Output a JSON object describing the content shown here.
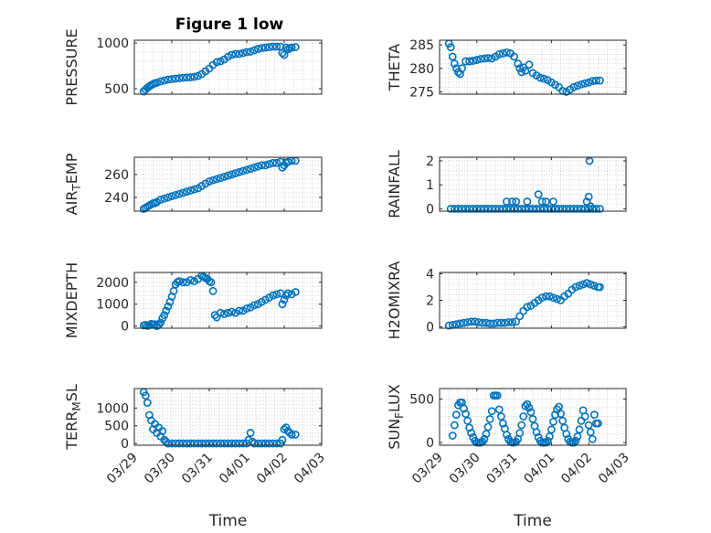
{
  "figure": {
    "title": "Figure 1 low",
    "marker_color": "#0072BD",
    "x_axis_label": "Time",
    "x_ticks": [
      "03/29",
      "03/30",
      "03/31",
      "04/01",
      "04/02",
      "04/03"
    ],
    "x_range": [
      0,
      5
    ]
  },
  "chart_data": [
    {
      "type": "scatter",
      "ylabel": "PRESSURE",
      "ylabel_parts": [
        {
          "t": "PRESSURE"
        }
      ],
      "ylim": [
        440,
        1030
      ],
      "yticks": [
        500,
        1000
      ],
      "xlim": [
        0,
        5
      ],
      "grid": true,
      "x": [
        0.25,
        0.3,
        0.35,
        0.4,
        0.45,
        0.5,
        0.55,
        0.6,
        0.7,
        0.8,
        0.9,
        1.0,
        1.1,
        1.2,
        1.3,
        1.4,
        1.5,
        1.6,
        1.7,
        1.8,
        1.9,
        2.0,
        2.1,
        2.2,
        2.3,
        2.4,
        2.5,
        2.6,
        2.7,
        2.8,
        2.9,
        3.0,
        3.1,
        3.2,
        3.3,
        3.4,
        3.5,
        3.6,
        3.7,
        3.8,
        3.9,
        3.95,
        4.0,
        4.05,
        4.1,
        4.15,
        4.2,
        4.3
      ],
      "y": [
        470,
        490,
        510,
        525,
        540,
        550,
        560,
        565,
        580,
        590,
        600,
        605,
        610,
        615,
        620,
        622,
        625,
        630,
        640,
        660,
        690,
        720,
        760,
        790,
        800,
        820,
        850,
        870,
        880,
        880,
        890,
        900,
        905,
        920,
        935,
        945,
        950,
        955,
        960,
        960,
        960,
        890,
        870,
        950,
        930,
        945,
        950,
        955
      ]
    },
    {
      "type": "scatter",
      "ylabel": "THETA",
      "ylabel_parts": [
        {
          "t": "THETA"
        }
      ],
      "ylim": [
        274.5,
        286
      ],
      "yticks": [
        275,
        280,
        285
      ],
      "xlim": [
        0,
        5
      ],
      "grid": true,
      "x": [
        0.25,
        0.3,
        0.35,
        0.4,
        0.45,
        0.5,
        0.55,
        0.6,
        0.7,
        0.8,
        0.9,
        1.0,
        1.1,
        1.2,
        1.3,
        1.4,
        1.5,
        1.6,
        1.7,
        1.8,
        1.9,
        2.0,
        2.1,
        2.15,
        2.2,
        2.25,
        2.3,
        2.4,
        2.5,
        2.6,
        2.7,
        2.8,
        2.9,
        3.0,
        3.1,
        3.2,
        3.3,
        3.4,
        3.5,
        3.6,
        3.7,
        3.8,
        3.9,
        4.0,
        4.1,
        4.2,
        4.3
      ],
      "y": [
        285.3,
        284.5,
        282.5,
        281.0,
        280.0,
        279.2,
        278.8,
        280.0,
        281.5,
        281.5,
        281.6,
        281.8,
        282.0,
        282.1,
        282.2,
        282.1,
        282.5,
        283.0,
        283.2,
        283.4,
        283.2,
        282.5,
        281.0,
        280.0,
        279.2,
        280.2,
        279.5,
        280.8,
        279.0,
        278.5,
        278.0,
        277.8,
        277.5,
        277.0,
        276.5,
        276.0,
        275.2,
        275.0,
        275.5,
        276.0,
        276.3,
        276.6,
        276.8,
        277.0,
        277.3,
        277.4,
        277.4
      ]
    },
    {
      "type": "scatter",
      "ylabel": "AIR_TEMP",
      "ylabel_parts": [
        {
          "t": "AIR"
        },
        {
          "t": "T",
          "sub": true
        },
        {
          "t": "EMP"
        }
      ],
      "ylim": [
        228,
        275
      ],
      "yticks": [
        240,
        260
      ],
      "xlim": [
        0,
        5
      ],
      "grid": true,
      "x": [
        0.25,
        0.3,
        0.35,
        0.4,
        0.45,
        0.5,
        0.55,
        0.6,
        0.7,
        0.8,
        0.9,
        1.0,
        1.1,
        1.2,
        1.3,
        1.4,
        1.5,
        1.6,
        1.7,
        1.8,
        1.9,
        2.0,
        2.1,
        2.2,
        2.3,
        2.4,
        2.5,
        2.6,
        2.7,
        2.8,
        2.9,
        3.0,
        3.1,
        3.2,
        3.3,
        3.4,
        3.5,
        3.6,
        3.7,
        3.8,
        3.9,
        3.95,
        4.0,
        4.05,
        4.1,
        4.2,
        4.3
      ],
      "y": [
        230,
        231,
        232,
        233,
        234,
        235,
        235,
        236,
        238,
        239,
        240,
        241,
        242,
        243,
        244,
        245,
        246,
        247,
        248,
        250,
        252,
        254,
        255,
        256,
        257,
        258,
        259,
        260,
        261,
        262,
        263,
        264,
        265,
        266,
        267,
        268,
        268,
        269,
        270,
        270,
        271,
        266,
        268,
        270,
        271,
        272,
        272
      ]
    },
    {
      "type": "scatter",
      "ylabel": "RAINFALL",
      "ylabel_parts": [
        {
          "t": "RAINFALL"
        }
      ],
      "ylim": [
        -0.1,
        2.15
      ],
      "yticks": [
        0,
        1,
        2
      ],
      "xlim": [
        0,
        5
      ],
      "grid": true,
      "x": [
        0.3,
        0.4,
        0.5,
        0.6,
        0.7,
        0.8,
        0.9,
        1.0,
        1.1,
        1.2,
        1.3,
        1.4,
        1.5,
        1.6,
        1.7,
        1.8,
        1.9,
        2.0,
        2.1,
        2.2,
        2.3,
        2.4,
        2.5,
        2.6,
        2.7,
        2.8,
        2.9,
        3.0,
        3.1,
        3.2,
        3.3,
        3.4,
        3.5,
        3.6,
        3.7,
        3.8,
        3.9,
        4.0,
        4.1,
        4.2,
        4.3,
        1.8,
        1.95,
        2.05,
        2.35,
        2.65,
        2.75,
        2.85,
        3.05,
        3.95,
        4.0,
        4.05,
        4.02
      ],
      "y": [
        0,
        0,
        0,
        0,
        0,
        0,
        0,
        0,
        0,
        0,
        0,
        0,
        0,
        0,
        0,
        0,
        0,
        0,
        0,
        0,
        0,
        0,
        0,
        0,
        0,
        0,
        0,
        0,
        0,
        0,
        0,
        0,
        0,
        0,
        0,
        0,
        0,
        0,
        0,
        0,
        0,
        0.3,
        0.3,
        0.3,
        0.3,
        0.6,
        0.3,
        0.3,
        0.3,
        0.3,
        0.5,
        0.1,
        2.0
      ]
    },
    {
      "type": "scatter",
      "ylabel": "MIXDEPTH",
      "ylabel_parts": [
        {
          "t": "MIXDEPTH"
        }
      ],
      "ylim": [
        -100,
        2450
      ],
      "yticks": [
        0,
        1000,
        2000
      ],
      "xlim": [
        0,
        5
      ],
      "grid": true,
      "x": [
        0.25,
        0.3,
        0.35,
        0.4,
        0.45,
        0.5,
        0.55,
        0.6,
        0.65,
        0.7,
        0.75,
        0.8,
        0.85,
        0.9,
        0.95,
        1.0,
        1.05,
        1.1,
        1.15,
        1.2,
        1.3,
        1.4,
        1.5,
        1.6,
        1.7,
        1.8,
        1.85,
        1.9,
        1.95,
        2.0,
        2.05,
        2.1,
        2.15,
        2.2,
        2.3,
        2.4,
        2.5,
        2.6,
        2.7,
        2.8,
        2.9,
        3.0,
        3.1,
        3.2,
        3.3,
        3.4,
        3.5,
        3.6,
        3.7,
        3.8,
        3.9,
        3.95,
        4.0,
        4.05,
        4.1,
        4.2,
        4.3
      ],
      "y": [
        30,
        50,
        10,
        40,
        100,
        60,
        80,
        0,
        50,
        150,
        350,
        500,
        700,
        900,
        1100,
        1350,
        1600,
        1900,
        2000,
        2050,
        2000,
        2000,
        2100,
        2050,
        2150,
        2300,
        2250,
        2200,
        2150,
        2050,
        2000,
        1600,
        500,
        400,
        600,
        550,
        600,
        650,
        600,
        700,
        700,
        800,
        850,
        950,
        1000,
        1100,
        1200,
        1300,
        1400,
        1450,
        1500,
        1000,
        1200,
        1400,
        1500,
        1450,
        1550
      ]
    },
    {
      "type": "scatter",
      "ylabel": "H2OMIXRA",
      "ylabel_parts": [
        {
          "t": "H2OMIXRA"
        }
      ],
      "ylim": [
        -0.1,
        4.1
      ],
      "yticks": [
        0,
        2,
        4
      ],
      "xlim": [
        0,
        5
      ],
      "grid": true,
      "x": [
        0.25,
        0.35,
        0.45,
        0.55,
        0.65,
        0.75,
        0.85,
        0.95,
        1.05,
        1.15,
        1.25,
        1.35,
        1.45,
        1.55,
        1.65,
        1.75,
        1.85,
        1.95,
        2.05,
        2.15,
        2.25,
        2.35,
        2.45,
        2.55,
        2.65,
        2.75,
        2.85,
        2.95,
        3.05,
        3.15,
        3.25,
        3.35,
        3.45,
        3.55,
        3.65,
        3.75,
        3.85,
        3.95,
        4.05,
        4.15,
        4.25,
        4.3
      ],
      "y": [
        0.1,
        0.15,
        0.2,
        0.25,
        0.3,
        0.35,
        0.4,
        0.4,
        0.35,
        0.3,
        0.3,
        0.25,
        0.25,
        0.3,
        0.3,
        0.3,
        0.35,
        0.35,
        0.4,
        0.8,
        1.2,
        1.5,
        1.6,
        1.8,
        2.0,
        2.2,
        2.3,
        2.3,
        2.2,
        2.1,
        2.0,
        2.3,
        2.5,
        2.8,
        3.0,
        3.1,
        3.2,
        3.3,
        3.2,
        3.1,
        3.0,
        3.0
      ]
    },
    {
      "type": "scatter",
      "ylabel": "TERR_MSL",
      "ylabel_parts": [
        {
          "t": "TERR"
        },
        {
          "t": "M",
          "sub": true
        },
        {
          "t": "SL"
        }
      ],
      "ylim": [
        -50,
        1550
      ],
      "yticks": [
        0,
        500,
        1000
      ],
      "xlim": [
        0,
        5
      ],
      "grid": true,
      "x": [
        0.25,
        0.3,
        0.35,
        0.4,
        0.45,
        0.5,
        0.55,
        0.6,
        0.65,
        0.7,
        0.75,
        0.8,
        0.85,
        0.9,
        1.0,
        1.1,
        1.2,
        1.3,
        1.4,
        1.5,
        1.6,
        1.7,
        1.8,
        1.9,
        2.0,
        2.1,
        2.2,
        2.3,
        2.4,
        2.5,
        2.6,
        2.7,
        2.8,
        2.9,
        3.0,
        3.05,
        3.1,
        3.15,
        3.2,
        3.3,
        3.4,
        3.5,
        3.6,
        3.7,
        3.8,
        3.9,
        3.95,
        4.0,
        4.05,
        4.1,
        4.15,
        4.2,
        4.3
      ],
      "y": [
        1450,
        1350,
        1150,
        800,
        650,
        400,
        550,
        300,
        450,
        200,
        350,
        100,
        50,
        0,
        0,
        0,
        0,
        0,
        0,
        0,
        0,
        0,
        0,
        0,
        0,
        0,
        0,
        0,
        0,
        0,
        0,
        0,
        0,
        0,
        0,
        100,
        300,
        50,
        0,
        0,
        0,
        0,
        0,
        0,
        0,
        0,
        100,
        400,
        450,
        350,
        300,
        250,
        250
      ]
    },
    {
      "type": "scatter",
      "ylabel": "SUN_FLUX",
      "ylabel_parts": [
        {
          "t": "SUN"
        },
        {
          "t": "F",
          "sub": true
        },
        {
          "t": "LUX"
        }
      ],
      "ylim": [
        -30,
        620
      ],
      "yticks": [
        0,
        500
      ],
      "xlim": [
        0,
        5
      ],
      "grid": true,
      "x": [
        0.35,
        0.4,
        0.45,
        0.5,
        0.55,
        0.6,
        0.65,
        0.7,
        0.75,
        0.8,
        0.85,
        0.9,
        0.95,
        1.0,
        1.05,
        1.1,
        1.15,
        1.2,
        1.25,
        1.3,
        1.35,
        1.4,
        1.45,
        1.5,
        1.55,
        1.6,
        1.65,
        1.7,
        1.75,
        1.8,
        1.85,
        1.9,
        1.95,
        2.0,
        2.05,
        2.1,
        2.15,
        2.2,
        2.25,
        2.3,
        2.35,
        2.4,
        2.45,
        2.5,
        2.55,
        2.6,
        2.65,
        2.7,
        2.75,
        2.8,
        2.85,
        2.9,
        2.95,
        3.0,
        3.05,
        3.1,
        3.15,
        3.2,
        3.25,
        3.3,
        3.35,
        3.4,
        3.45,
        3.5,
        3.55,
        3.6,
        3.65,
        3.7,
        3.75,
        3.8,
        3.85,
        3.9,
        4.0,
        4.05,
        4.1,
        4.15,
        4.2,
        4.25
      ],
      "y": [
        80,
        200,
        320,
        430,
        460,
        460,
        390,
        330,
        250,
        170,
        110,
        60,
        20,
        0,
        0,
        0,
        10,
        40,
        100,
        180,
        270,
        360,
        540,
        540,
        540,
        380,
        300,
        220,
        160,
        90,
        40,
        10,
        0,
        0,
        10,
        40,
        110,
        200,
        300,
        420,
        440,
        400,
        350,
        270,
        190,
        120,
        60,
        20,
        0,
        0,
        0,
        20,
        70,
        150,
        240,
        320,
        380,
        410,
        330,
        250,
        170,
        100,
        40,
        10,
        0,
        0,
        20,
        70,
        150,
        250,
        370,
        300,
        200,
        120,
        40,
        320,
        220,
        220
      ]
    }
  ]
}
